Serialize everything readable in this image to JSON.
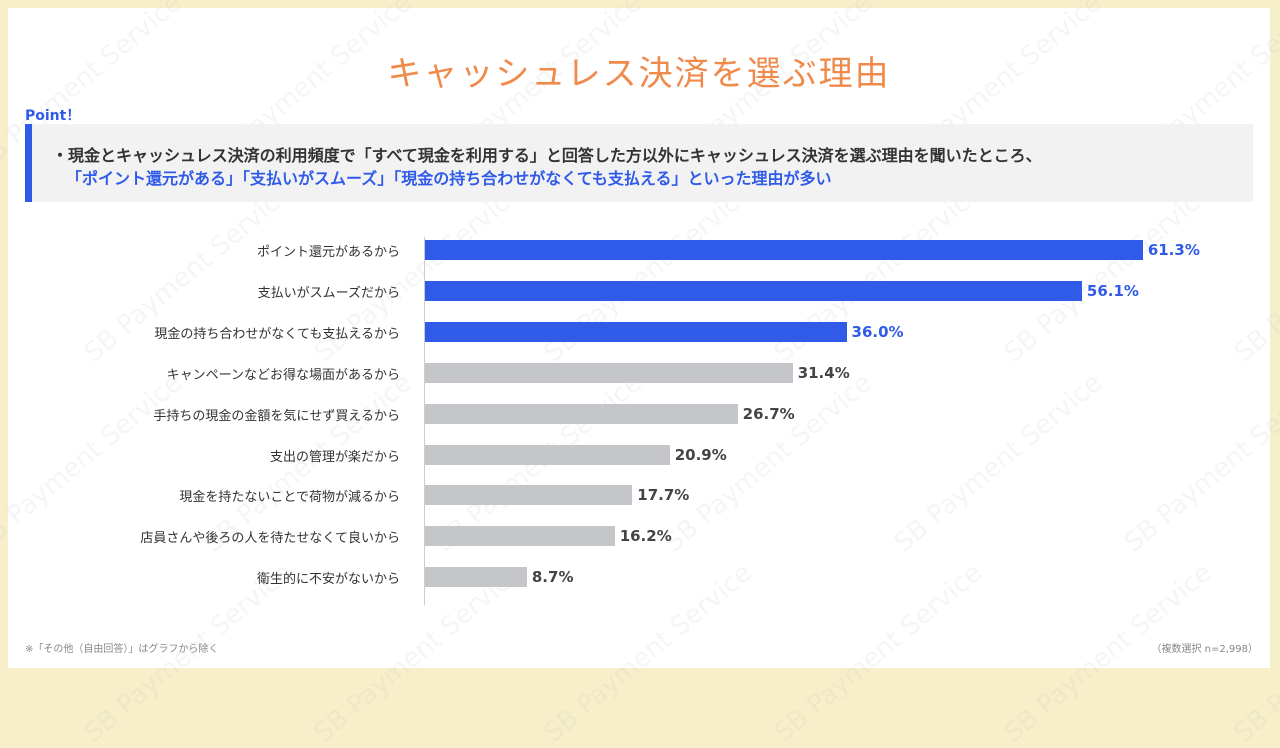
{
  "title": "キャッシュレス決済を選ぶ理由",
  "point": {
    "label": "Point！",
    "line1": "・現金とキャッシュレス決済の利用頻度で「すべて現金を利用する」と回答した方以外にキャッシュレス決済を選ぶ理由を聞いたところ、",
    "line2": "「ポイント還元がある」「支払いがスムーズ」「現金の持ち合わせがなくても支払える」といった理由が多い"
  },
  "chart_data": {
    "type": "bar",
    "orientation": "horizontal",
    "categories": [
      "ポイント還元があるから",
      "支払いがスムーズだから",
      "現金の持ち合わせがなくても支払えるから",
      "キャンペーンなどお得な場面があるから",
      "手持ちの現金の金額を気にせず買えるから",
      "支出の管理が楽だから",
      "現金を持たないことで荷物が減るから",
      "店員さんや後ろの人を待たせなくて良いから",
      "衛生的に不安がないから"
    ],
    "values": [
      61.3,
      56.1,
      36.0,
      31.4,
      26.7,
      20.9,
      17.7,
      16.2,
      8.7
    ],
    "value_labels": [
      "61.3%",
      "56.1%",
      "36.0%",
      "31.4%",
      "26.7%",
      "20.9%",
      "17.7%",
      "16.2%",
      "8.7%"
    ],
    "highlighted": [
      true,
      true,
      true,
      false,
      false,
      false,
      false,
      false,
      false
    ],
    "colors": {
      "highlight": "#2f5be8",
      "normal": "#c4c6ca",
      "highlight_text": "#2f5be8",
      "normal_text": "#444444"
    },
    "unit": "%",
    "grid": false
  },
  "footnote": "※「その他（自由回答）」はグラフから除く",
  "sample": "（複数選択 n=2,998）",
  "watermark": "SB Payment Service"
}
